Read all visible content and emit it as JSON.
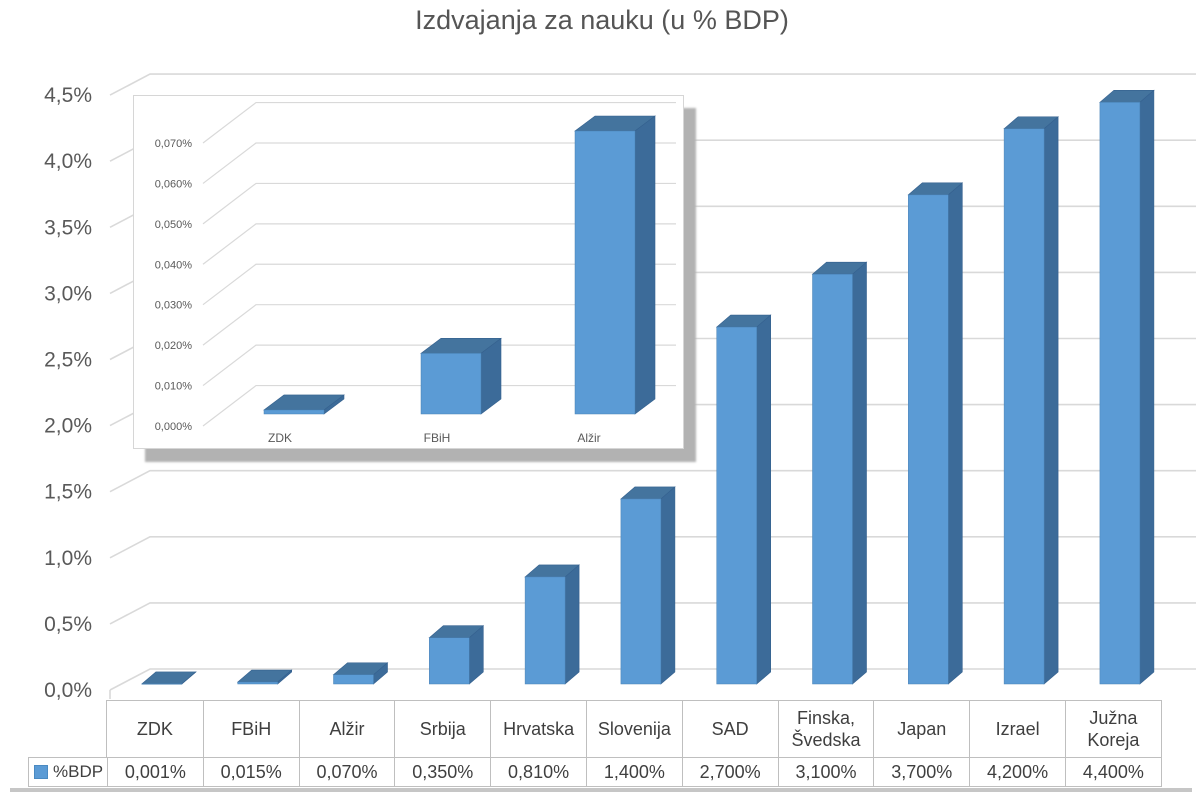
{
  "title": "Izdvajanja za nauku (u % BDP)",
  "table": {
    "legend_label": "%BDP"
  },
  "chart_data": {
    "type": "bar",
    "title": "Izdvajanja za nauku (u % BDP)",
    "categories": [
      "ZDK",
      "FBiH",
      "Alžir",
      "Srbija",
      "Hrvatska",
      "Slovenija",
      "SAD",
      "Finska, Švedska",
      "Japan",
      "Izrael",
      "Južna Koreja"
    ],
    "series": [
      {
        "name": "%BDP",
        "values": [
          0.001,
          0.015,
          0.07,
          0.35,
          0.81,
          1.4,
          2.7,
          3.1,
          3.7,
          4.2,
          4.4
        ]
      }
    ],
    "value_labels": [
      "0,001%",
      "0,015%",
      "0,070%",
      "0,350%",
      "0,810%",
      "1,400%",
      "2,700%",
      "3,100%",
      "3,700%",
      "4,200%",
      "4,400%"
    ],
    "y_axis": {
      "min": 0,
      "max": 4.5,
      "step": 0.5,
      "tick_labels": [
        "0,0%",
        "0,5%",
        "1,0%",
        "1,5%",
        "2,0%",
        "2,5%",
        "3,0%",
        "3,5%",
        "4,0%",
        "4,5%"
      ]
    },
    "grid": true,
    "legend_position": "bottom-table",
    "style_3d": true,
    "inset": {
      "type": "bar",
      "categories": [
        "ZDK",
        "FBiH",
        "Alžir"
      ],
      "values": [
        0.001,
        0.015,
        0.07
      ],
      "y_axis": {
        "min": 0,
        "max": 0.07,
        "step": 0.01,
        "tick_labels": [
          "0,000%",
          "0,010%",
          "0,020%",
          "0,030%",
          "0,040%",
          "0,050%",
          "0,060%",
          "0,070%"
        ]
      }
    },
    "colors": {
      "bar_front": "#5B9BD5",
      "bar_top": "#44749E",
      "bar_side": "#3C6B99",
      "gridline": "#D9D9D9",
      "axis_text": "#595959",
      "table_text": "#3F3F3F",
      "table_border": "#BFBFBF"
    }
  }
}
